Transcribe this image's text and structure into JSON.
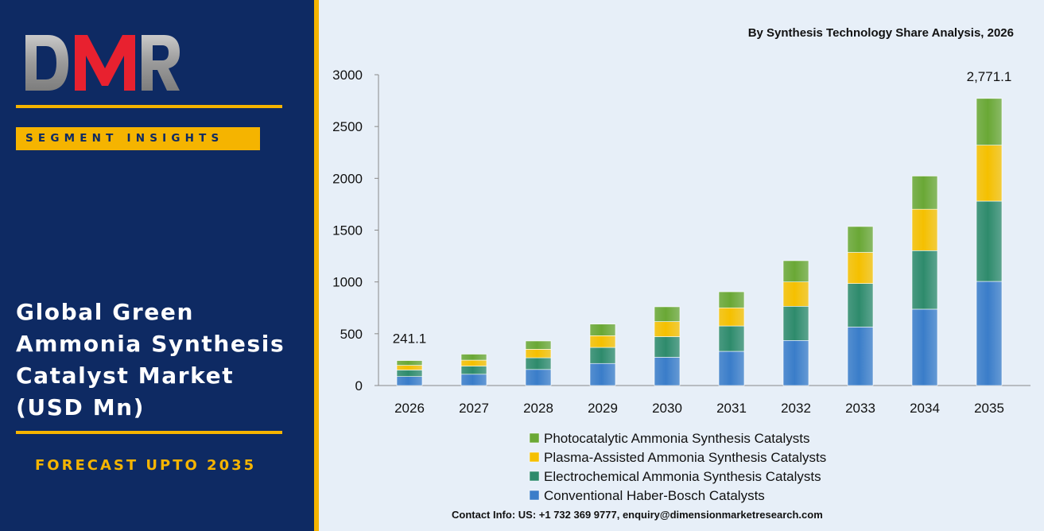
{
  "brand": {
    "logo_text": "DMR",
    "segment_label": "SEGMENT INSIGHTS",
    "market_title": "Global Green\nAmmonia Synthesis\nCatalyst Market\n(USD Mn)",
    "forecast_label": "FORECAST UPTO 2035"
  },
  "footer": {
    "contact": "Contact Info: US: +1 732 369 9777, enquiry@dimensionmarketresearch.com"
  },
  "colors": {
    "panel_bg": "#0e2a63",
    "accent": "#f5b400",
    "logo_red": "#e8212f",
    "logo_gray": "#a8a8a8",
    "chart_bg": "#e7eff8"
  },
  "chart_data": {
    "type": "bar",
    "stacked": true,
    "title": "By Synthesis Technology Share Analysis, 2026",
    "xlabel": "",
    "ylabel": "",
    "ylim": [
      0,
      3000
    ],
    "yticks": [
      0,
      500,
      1000,
      1500,
      2000,
      2500,
      3000
    ],
    "grid": false,
    "legend_position": "bottom",
    "categories": [
      "2026",
      "2027",
      "2028",
      "2029",
      "2030",
      "2031",
      "2032",
      "2033",
      "2034",
      "2035"
    ],
    "series": [
      {
        "name": "Conventional Haber-Bosch Catalysts",
        "color": "#3a7dc9",
        "values": [
          87,
          109,
          155,
          213,
          273,
          330,
          435,
          565,
          737,
          1005
        ]
      },
      {
        "name": "Electrochemical Ammonia Synthesis Catalysts",
        "color": "#2e8b6c",
        "values": [
          63,
          79,
          113,
          155,
          199,
          245,
          330,
          420,
          565,
          775
        ]
      },
      {
        "name": "Plasma-Assisted Ammonia Synthesis Catalysts",
        "color": "#f5c000",
        "values": [
          45,
          57,
          82,
          113,
          145,
          175,
          235,
          300,
          400,
          540
        ]
      },
      {
        "name": "Photocatalytic Ammonia Synthesis Catalysts",
        "color": "#6aa835",
        "values": [
          46.1,
          58,
          80,
          112,
          143,
          155,
          205,
          250,
          320,
          451.1
        ]
      }
    ],
    "annotations": [
      {
        "category": "2026",
        "label": "241.1"
      },
      {
        "category": "2035",
        "label": "2,771.1"
      }
    ]
  }
}
